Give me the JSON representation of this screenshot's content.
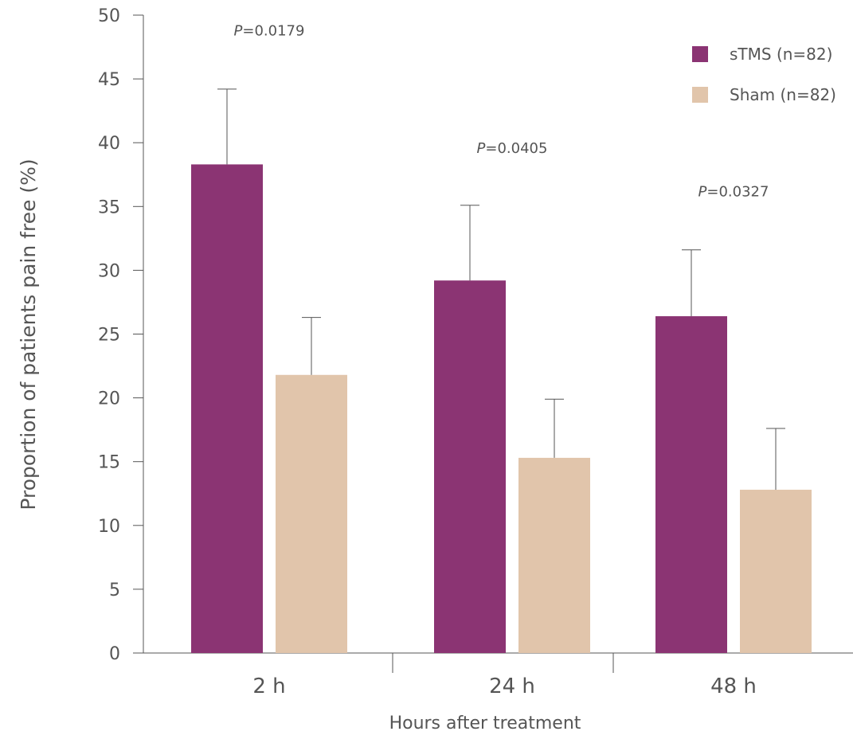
{
  "chart_data": {
    "type": "bar",
    "categories": [
      "2 h",
      "24 h",
      "48 h"
    ],
    "series": [
      {
        "name": "sTMS (n=82)",
        "color": "#8b3473",
        "values": [
          38.3,
          29.2,
          26.4
        ],
        "error_upper": [
          44.2,
          35.1,
          31.6
        ]
      },
      {
        "name": "Sham (n=82)",
        "color": "#e1c5ab",
        "values": [
          21.8,
          15.3,
          12.8
        ],
        "error_upper": [
          26.3,
          19.9,
          17.6
        ]
      }
    ],
    "annotations": [
      {
        "category": "2 h",
        "p_italic": "P",
        "text": "=0.0179",
        "y": 48.4
      },
      {
        "category": "24 h",
        "p_italic": "P",
        "text": "=0.0405",
        "y": 39.2
      },
      {
        "category": "48 h",
        "p_italic": "P",
        "text": "=0.0327",
        "y": 35.8
      }
    ],
    "xlabel": "Hours after treatment",
    "ylabel": "Proportion of patients pain free (%)",
    "ylim": [
      0,
      50
    ],
    "yticks": [
      0,
      5,
      10,
      15,
      20,
      25,
      30,
      35,
      40,
      45,
      50
    ],
    "grid": false,
    "legend_position": "top-right"
  }
}
